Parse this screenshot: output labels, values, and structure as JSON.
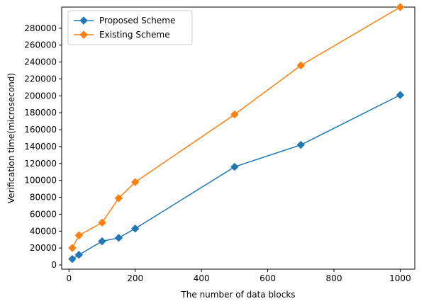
{
  "chart_data": {
    "type": "line",
    "title": "",
    "xlabel": "The number of data blocks",
    "ylabel": "Verification time(microsecond)",
    "xlim": [
      -22,
      1044
    ],
    "ylim": [
      -5000,
      305000
    ],
    "xticks": [
      0,
      200,
      400,
      600,
      800,
      1000
    ],
    "yticks": [
      0,
      20000,
      40000,
      60000,
      80000,
      100000,
      120000,
      140000,
      160000,
      180000,
      200000,
      220000,
      240000,
      260000,
      280000
    ],
    "grid": false,
    "legend_position": "top-left",
    "series": [
      {
        "name": "Proposed Scheme",
        "color": "#1f77b4",
        "marker": "diamond",
        "x": [
          10,
          30,
          100,
          150,
          200,
          500,
          700,
          1000
        ],
        "y": [
          7000,
          12000,
          28000,
          32000,
          43000,
          116000,
          142000,
          201000
        ]
      },
      {
        "name": "Existing Scheme",
        "color": "#ff7f0e",
        "marker": "diamond",
        "x": [
          10,
          30,
          100,
          150,
          200,
          500,
          700,
          1000
        ],
        "y": [
          20000,
          35000,
          50000,
          79000,
          98000,
          178000,
          236000,
          305000
        ]
      }
    ]
  }
}
